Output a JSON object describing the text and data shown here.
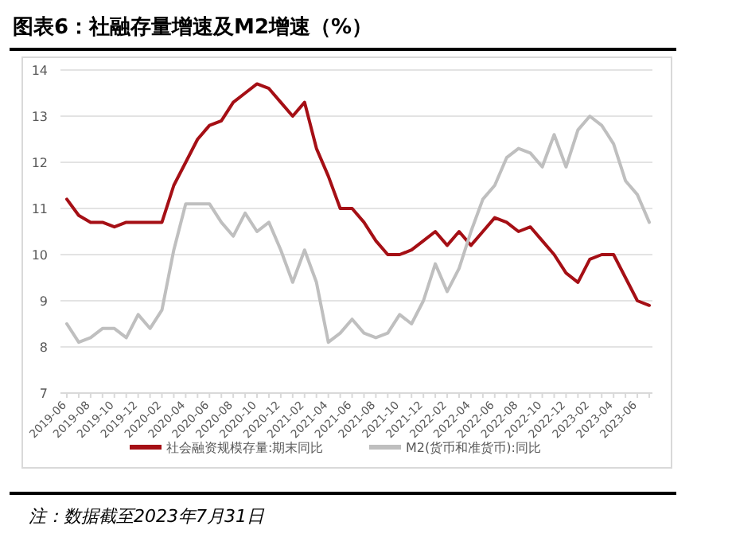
{
  "chart_data": {
    "type": "line",
    "title": "图表6：社融存量增速及M2增速（%）",
    "categories": [
      "2019-06",
      null,
      "2019-08",
      null,
      "2019-10",
      null,
      "2019-12",
      null,
      "2020-02",
      null,
      "2020-04",
      null,
      "2020-06",
      null,
      "2020-08",
      null,
      "2020-10",
      null,
      "2020-12",
      null,
      "2021-02",
      null,
      "2021-04",
      null,
      "2021-06",
      null,
      "2021-08",
      null,
      "2021-10",
      null,
      "2021-12",
      null,
      "2022-02",
      null,
      "2022-04",
      null,
      "2022-06",
      null,
      "2022-08",
      null,
      "2022-10",
      null,
      "2022-12",
      null,
      "2023-02",
      null,
      "2023-04",
      null,
      "2023-06",
      null
    ],
    "series": [
      {
        "name": "社会融资规模存量:期末同比",
        "color": "#a50f15",
        "values": [
          11.2,
          10.85,
          10.7,
          10.7,
          10.6,
          10.7,
          10.7,
          10.7,
          10.7,
          11.5,
          12.0,
          12.5,
          12.8,
          12.9,
          13.3,
          13.5,
          13.7,
          13.6,
          13.3,
          13.0,
          13.3,
          12.3,
          11.7,
          11.0,
          11.0,
          10.7,
          10.3,
          10.0,
          10.0,
          10.1,
          10.3,
          10.5,
          10.2,
          10.5,
          10.2,
          10.5,
          10.8,
          10.7,
          10.5,
          10.6,
          10.3,
          10.0,
          9.6,
          9.4,
          9.9,
          10.0,
          10.0,
          9.5,
          9.0,
          8.9
        ]
      },
      {
        "name": "M2(货币和准货币):同比",
        "color": "#bfbfbf",
        "values": [
          8.5,
          8.1,
          8.2,
          8.4,
          8.4,
          8.2,
          8.7,
          8.4,
          8.8,
          10.1,
          11.1,
          11.1,
          11.1,
          10.7,
          10.4,
          10.9,
          10.5,
          10.7,
          10.1,
          9.4,
          10.1,
          9.4,
          8.1,
          8.3,
          8.6,
          8.3,
          8.2,
          8.3,
          8.7,
          8.5,
          9.0,
          9.8,
          9.2,
          9.7,
          10.5,
          11.2,
          11.5,
          12.1,
          12.3,
          12.2,
          11.9,
          12.6,
          11.9,
          12.7,
          13.0,
          12.8,
          12.4,
          11.6,
          11.3,
          10.7
        ]
      }
    ],
    "ylim": [
      7,
      14
    ],
    "yticks": [
      7,
      8,
      9,
      10,
      11,
      12,
      13,
      14
    ],
    "grid": "y",
    "legend": "bottom",
    "annotations": [
      "注：数据截至2023年7月31日"
    ]
  }
}
